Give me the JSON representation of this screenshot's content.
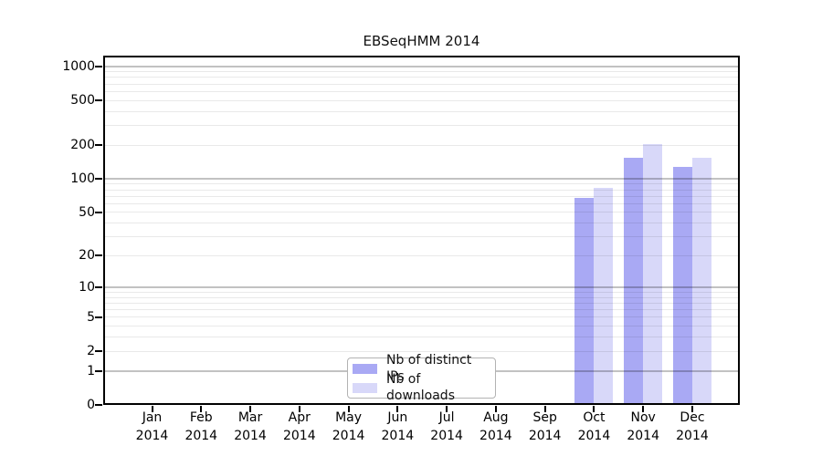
{
  "chart_data": {
    "type": "bar",
    "title": "EBSeqHMM 2014",
    "x_categories": [
      "Jan",
      "Feb",
      "Mar",
      "Apr",
      "May",
      "Jun",
      "Jul",
      "Aug",
      "Sep",
      "Oct",
      "Nov",
      "Dec"
    ],
    "x_year": "2014",
    "xlabel": "",
    "ylabel": "",
    "y_scale": "log10(value+1)",
    "ylim": [
      0,
      1250
    ],
    "y_ticks": [
      0,
      1,
      2,
      5,
      10,
      20,
      50,
      100,
      200,
      500,
      1000
    ],
    "y_gridlines": {
      "major": [
        1,
        10,
        100,
        1000
      ],
      "minor": [
        2,
        3,
        4,
        5,
        6,
        7,
        8,
        9,
        20,
        30,
        40,
        50,
        60,
        70,
        80,
        90,
        200,
        300,
        400,
        500,
        600,
        700,
        800,
        900
      ]
    },
    "grid": "horizontal log minor+major gridlines, drawn over bars",
    "legend_position": "inside bottom-center",
    "series": [
      {
        "name": "Nb of distinct IPs",
        "color": "#a9a9f4",
        "values": [
          null,
          null,
          null,
          null,
          null,
          null,
          null,
          null,
          null,
          67,
          154,
          128
        ]
      },
      {
        "name": "Nb of downloads",
        "color": "#d8d8f9",
        "values": [
          null,
          null,
          null,
          null,
          null,
          null,
          null,
          null,
          null,
          83,
          203,
          154
        ]
      }
    ]
  }
}
